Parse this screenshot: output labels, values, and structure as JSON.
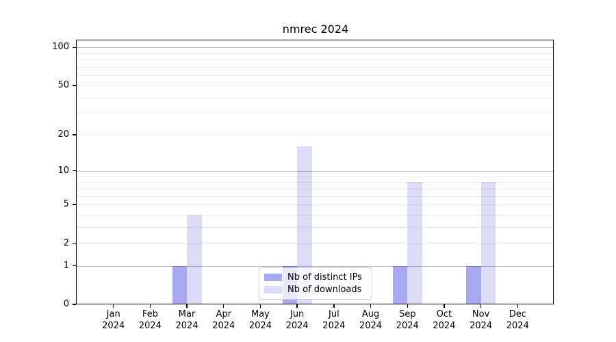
{
  "chart_data": {
    "type": "bar",
    "title": "nmrec 2024",
    "categories": [
      "Jan",
      "Feb",
      "Mar",
      "Apr",
      "May",
      "Jun",
      "Jul",
      "Aug",
      "Sep",
      "Oct",
      "Nov",
      "Dec"
    ],
    "category_year": "2024",
    "series": [
      {
        "name": "Nb of distinct IPs",
        "color": "#a9a9f2",
        "values": [
          0,
          0,
          1,
          0,
          0,
          1,
          0,
          0,
          1,
          0,
          1,
          0
        ]
      },
      {
        "name": "Nb of downloads",
        "color": "#dcdcf9",
        "values": [
          0,
          0,
          4,
          0,
          0,
          16,
          0,
          0,
          8,
          0,
          8,
          0
        ]
      }
    ],
    "y_axis": {
      "scale": "log1p",
      "tick_values": [
        0,
        1,
        2,
        5,
        10,
        20,
        50,
        100
      ],
      "tick_labels": [
        "0",
        "1",
        "2",
        "5",
        "10",
        "20",
        "50",
        "100"
      ],
      "major_grid_values": [
        1,
        10,
        100
      ],
      "minor_grid_values": [
        2,
        3,
        4,
        5,
        6,
        7,
        8,
        9,
        20,
        30,
        40,
        50,
        60,
        70,
        80,
        90
      ],
      "ylim": [
        0,
        113
      ]
    },
    "legend": {
      "position": "lower center"
    },
    "grid": true,
    "style": {
      "background": "#ffffff",
      "spine_color": "#000000",
      "major_grid_color": "#b9b9b9",
      "minor_grid_color": "#e8e8e8"
    }
  }
}
